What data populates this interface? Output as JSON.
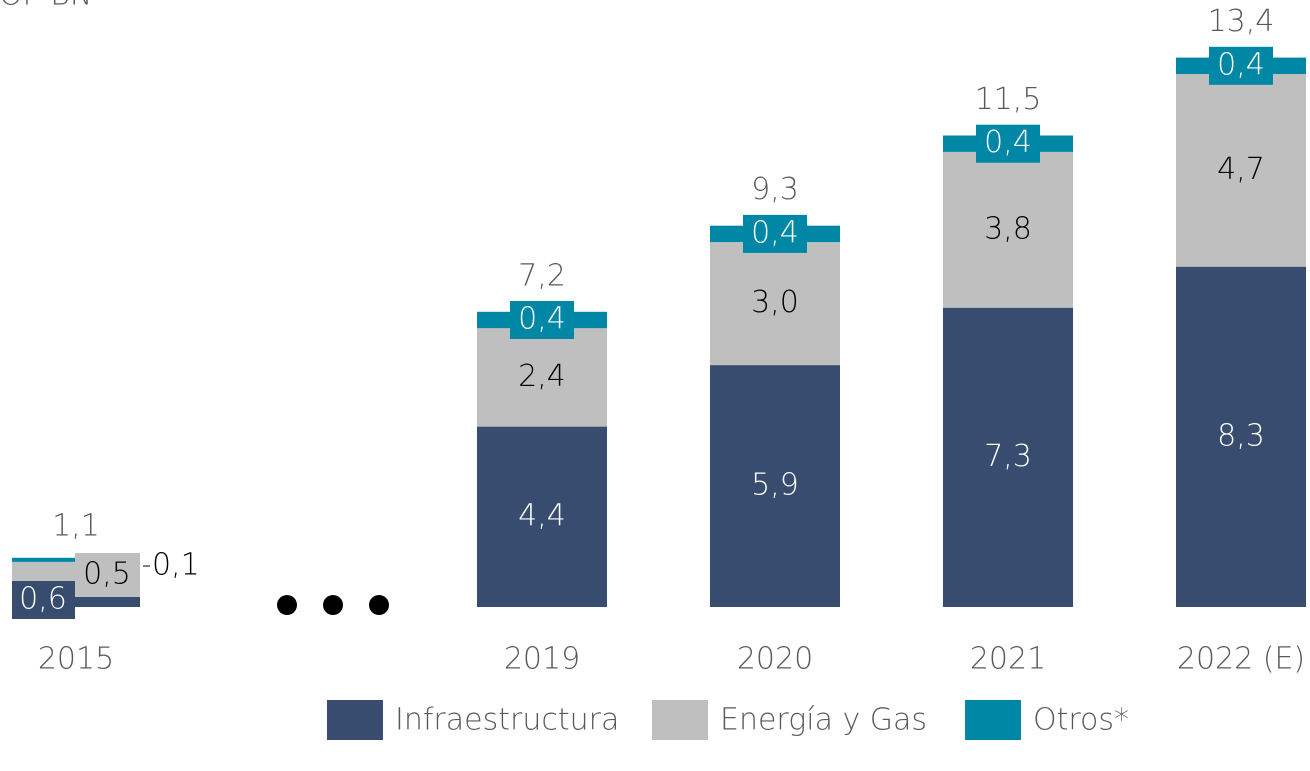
{
  "chart_data": {
    "type": "bar",
    "stacked": true,
    "unit_label": "COP BN",
    "categories": [
      "2015",
      "2019",
      "2020",
      "2021",
      "2022 (E)"
    ],
    "series": [
      {
        "name": "Infraestructura",
        "color": "#374c6e",
        "values": [
          0.6,
          4.4,
          5.9,
          7.3,
          8.3
        ],
        "value_labels": [
          "0,6",
          "4,4",
          "5,9",
          "7,3",
          "8,3"
        ]
      },
      {
        "name": "Energía y Gas",
        "color": "#bfbfbf",
        "values": [
          0.5,
          2.4,
          3.0,
          3.8,
          4.7
        ],
        "value_labels": [
          "0,5",
          "2,4",
          "3,0",
          "3,8",
          "4,7"
        ]
      },
      {
        "name": "Otros*",
        "color": "#0087a6",
        "values": [
          0.1,
          0.4,
          0.4,
          0.4,
          0.4
        ],
        "value_labels": [
          "0,1",
          "0,4",
          "0,4",
          "0,4",
          "0,4"
        ]
      }
    ],
    "totals": [
      1.1,
      7.2,
      9.3,
      11.5,
      13.4
    ],
    "total_labels": [
      "1,1",
      "7,2",
      "9,3",
      "11,5",
      "13,4"
    ],
    "ylim": [
      0,
      14
    ]
  }
}
